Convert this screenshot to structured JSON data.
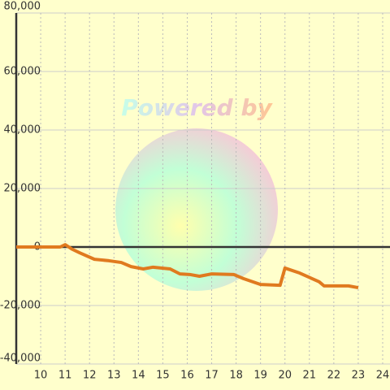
{
  "chart_data": {
    "type": "line",
    "watermark": "Powered by",
    "x": [
      9,
      10.8,
      11,
      11.3,
      11.6,
      12.2,
      12.8,
      13.3,
      13.7,
      14.2,
      14.6,
      15.3,
      15.7,
      16.1,
      16.5,
      17,
      17.9,
      18.3,
      19,
      19.8,
      20,
      20.6,
      21.4,
      21.6,
      22.6,
      23
    ],
    "series": [
      {
        "color": "#e07a1f",
        "values": [
          0,
          0,
          800,
          -800,
          -2000,
          -4200,
          -4700,
          -5300,
          -6700,
          -7500,
          -6900,
          -7500,
          -9200,
          -9400,
          -10000,
          -9200,
          -9400,
          -10800,
          -12800,
          -13100,
          -7200,
          -8900,
          -11900,
          -13300,
          -13300,
          -13900
        ]
      }
    ],
    "xlim": [
      9,
      24.3
    ],
    "xticks": [
      10,
      11,
      12,
      13,
      14,
      15,
      16,
      17,
      18,
      19,
      20,
      21,
      22,
      23,
      24
    ],
    "ylim": [
      -40000,
      80000
    ],
    "yticks": [
      {
        "value": -40000,
        "label": "-40,000"
      },
      {
        "value": -20000,
        "label": "-20,000"
      },
      0,
      {
        "value": 20000,
        "label": "20,000"
      },
      {
        "value": 40000,
        "label": "40,000"
      },
      {
        "value": 60000,
        "label": "60,000"
      },
      {
        "value": 80000,
        "label": "80,000"
      }
    ],
    "grid": true
  }
}
